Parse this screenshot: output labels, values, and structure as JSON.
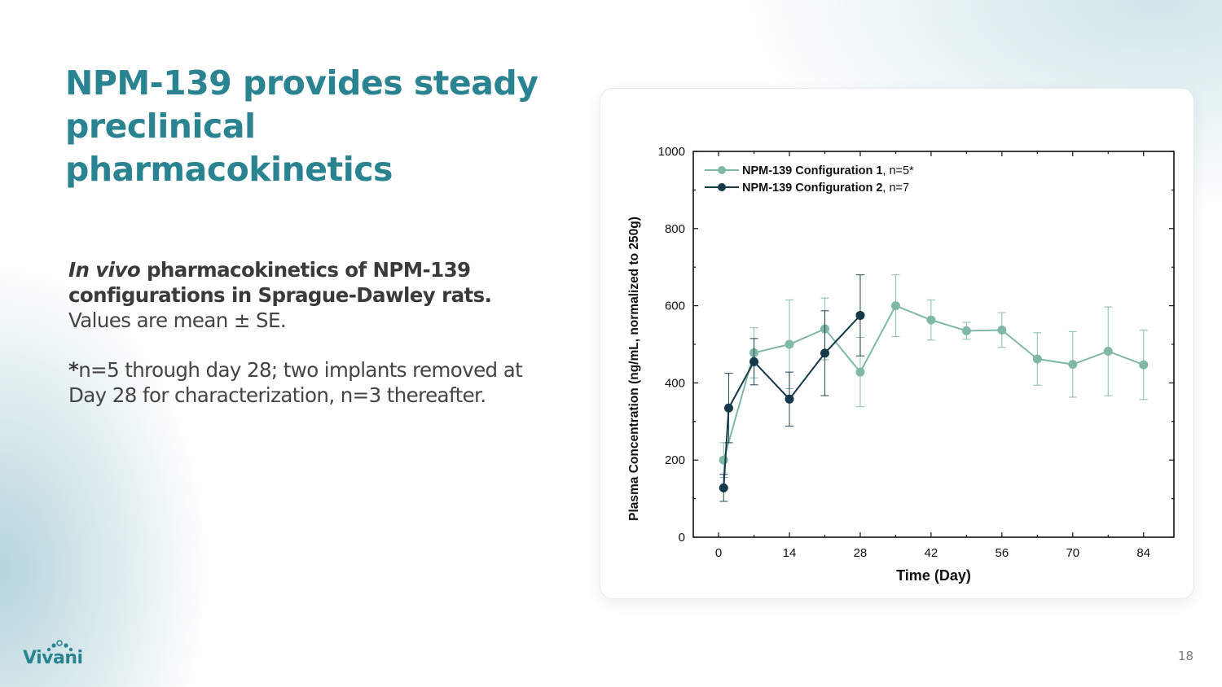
{
  "slide": {
    "title": "NPM-139 provides steady preclinical pharmacokinetics",
    "caption_italic": "In vivo",
    "caption_bold": " pharmacokinetics of NPM-139 configurations in Sprague-Dawley rats.",
    "caption_rest": " Values are mean ± SE.",
    "footnote_star": "*",
    "footnote_text": "n=5 through day 28; two implants removed at Day 28 for characterization, n=3 thereafter.",
    "logo_text": "Vivani",
    "page_number": "18"
  },
  "colors": {
    "title": "#2a8390",
    "series1": "#7fb8a6",
    "series2": "#14394a"
  },
  "chart_data": {
    "type": "line",
    "xlabel": "Time (Day)",
    "ylabel": "Plasma Concentration (ng/mL, normalized to 250g)",
    "xlim": [
      -5,
      90
    ],
    "ylim": [
      0,
      1000
    ],
    "xticks": [
      0,
      14,
      28,
      42,
      56,
      70,
      84
    ],
    "yticks": [
      0,
      200,
      400,
      600,
      800,
      1000
    ],
    "legend_position": "top-left",
    "series": [
      {
        "name": "NPM-139 Configuration 1",
        "name_suffix": ", n=5*",
        "color": "#7fb8a6",
        "x": [
          1,
          7,
          14,
          21,
          28,
          35,
          42,
          49,
          56,
          63,
          70,
          77,
          84
        ],
        "y": [
          200,
          478,
          500,
          540,
          428,
          600,
          563,
          535,
          537,
          462,
          448,
          482,
          447
        ],
        "err": [
          45,
          65,
          115,
          80,
          90,
          80,
          52,
          22,
          45,
          68,
          85,
          115,
          90
        ]
      },
      {
        "name": "NPM-139 Configuration 2",
        "name_suffix": ", n=7",
        "color": "#14394a",
        "x": [
          1,
          2,
          7,
          14,
          21,
          28
        ],
        "y": [
          128,
          335,
          455,
          358,
          477,
          575
        ],
        "err": [
          35,
          90,
          60,
          70,
          110,
          105
        ]
      }
    ]
  }
}
